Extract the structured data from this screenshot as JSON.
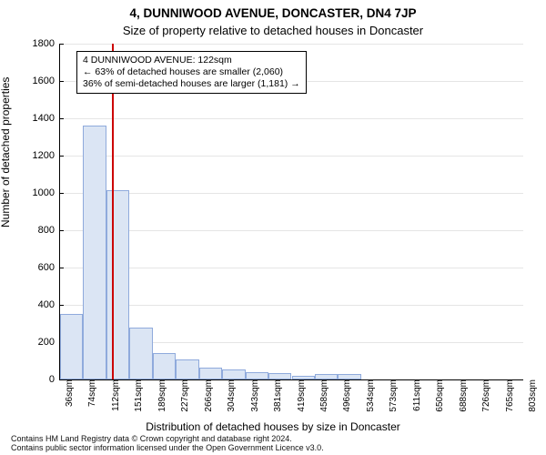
{
  "title_line1": "4, DUNNIWOOD AVENUE, DONCASTER, DN4 7JP",
  "title_line2": "Size of property relative to detached houses in Doncaster",
  "y_axis_label": "Number of detached properties",
  "x_axis_label": "Distribution of detached houses by size in Doncaster",
  "footer_line1": "Contains HM Land Registry data © Crown copyright and database right 2024.",
  "footer_line2": "Contains public sector information licensed under the Open Government Licence v3.0.",
  "chart": {
    "type": "histogram",
    "ylim": [
      0,
      1800
    ],
    "ytick_step": 200,
    "yticks": [
      0,
      200,
      400,
      600,
      800,
      1000,
      1200,
      1400,
      1600,
      1800
    ],
    "xtick_labels": [
      "36sqm",
      "74sqm",
      "112sqm",
      "151sqm",
      "189sqm",
      "227sqm",
      "266sqm",
      "304sqm",
      "343sqm",
      "381sqm",
      "419sqm",
      "458sqm",
      "496sqm",
      "534sqm",
      "573sqm",
      "611sqm",
      "650sqm",
      "688sqm",
      "726sqm",
      "765sqm",
      "803sqm"
    ],
    "n_bins": 20,
    "bar_values": [
      350,
      1360,
      1015,
      280,
      140,
      105,
      65,
      55,
      40,
      35,
      22,
      30,
      28,
      0,
      0,
      0,
      0,
      0,
      0,
      0
    ],
    "bar_fill": "#dbe5f4",
    "bar_border": "#8faadc",
    "grid_color": "#e5e5e5",
    "background": "#ffffff",
    "marker_value_sqm": 122,
    "marker_color": "#cc0000",
    "marker_width": 2,
    "infobox": {
      "line1": "4 DUNNIWOOD AVENUE: 122sqm",
      "line2": "← 63% of detached houses are smaller (2,060)",
      "line3": "36% of semi-detached houses are larger (1,181) →",
      "border_color": "#000000"
    }
  }
}
